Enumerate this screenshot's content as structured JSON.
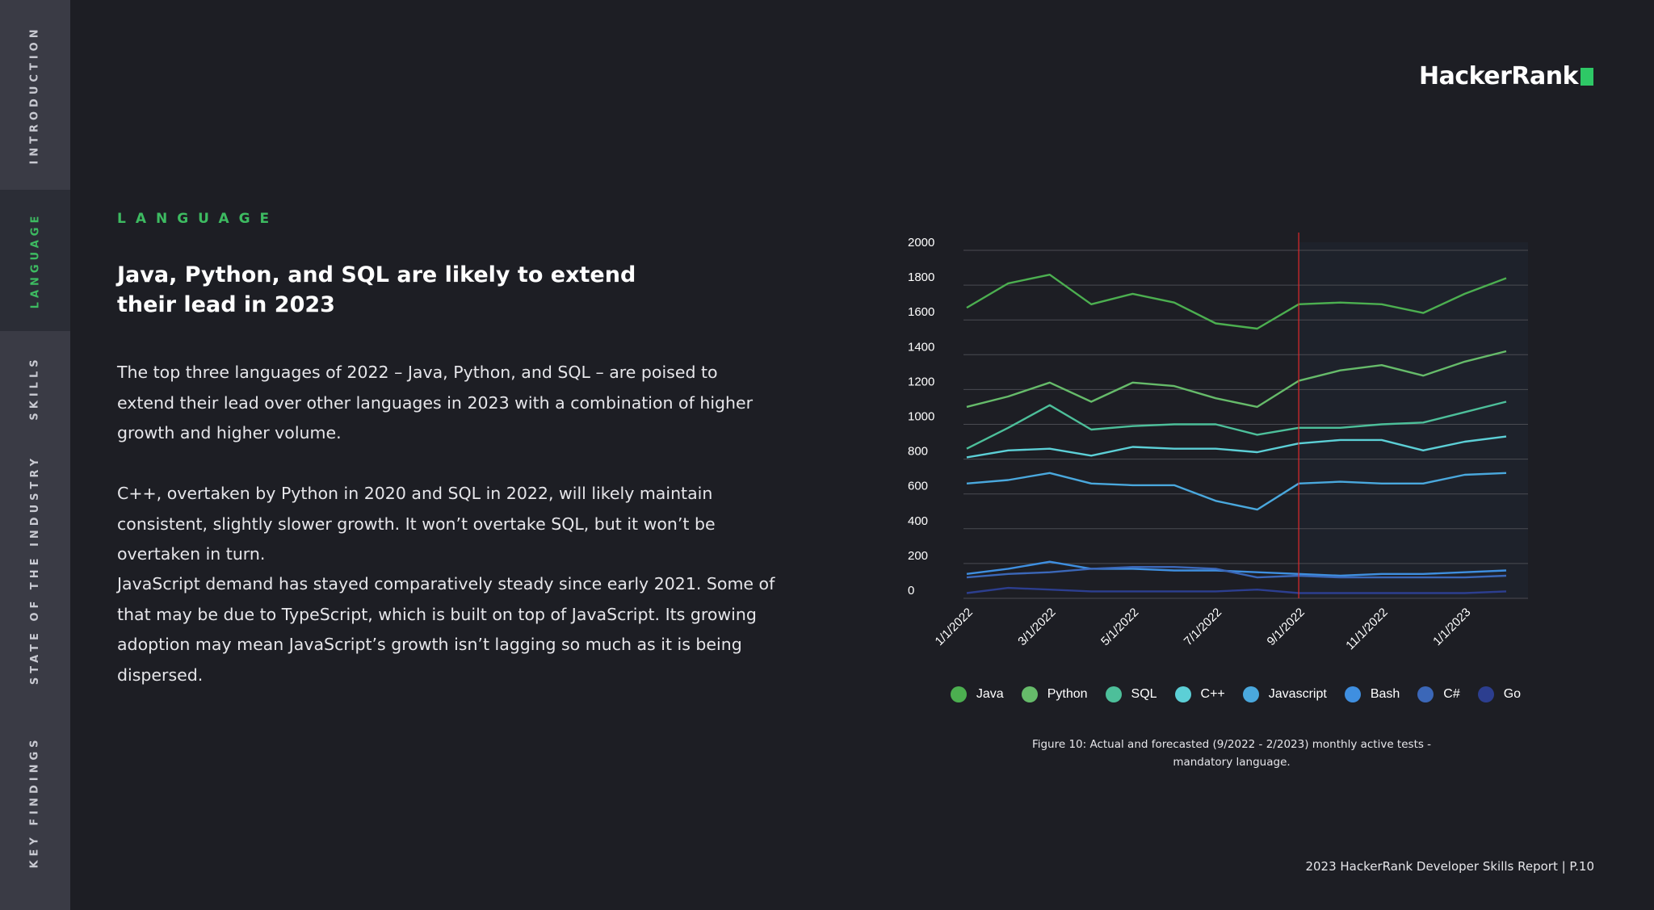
{
  "nav": {
    "items": [
      {
        "label": "INTRODUCTION"
      },
      {
        "label": "LANGUAGE"
      },
      {
        "label": "SKILLS"
      },
      {
        "label": "STATE OF THE INDUSTRY"
      },
      {
        "label": "KEY FINDINGS"
      }
    ],
    "active": "LANGUAGE"
  },
  "brand": {
    "name": "HackerRank"
  },
  "section_tag": "LANGUAGE",
  "headline": "Java, Python, and SQL are likely to extend their lead in 2023",
  "paragraphs": [
    "The top three languages of 2022 – Java, Python, and SQL – are poised to extend their lead over other languages in 2023 with a combination of higher growth and higher volume.",
    "C++, overtaken by Python in 2020 and SQL in 2022, will likely maintain consistent, slightly slower growth. It won’t overtake SQL, but it won’t be overtaken in turn.",
    "JavaScript demand has stayed comparatively steady since early 2021. Some of that may be due to TypeScript, which is built on top of JavaScript. Its growing adoption may mean JavaScript’s growth isn’t lagging so much as it is being dispersed."
  ],
  "caption": "Figure 10: Actual and forecasted (9/2022 - 2/2023) monthly active tests - mandatory language.",
  "footer": "2023 HackerRank Developer Skills Report | P.10",
  "colors": {
    "accent": "#3dbb61",
    "forecast_line": "#e0282a",
    "gridline": "#4a4b52",
    "background": "#1d1e24"
  },
  "chart_data": {
    "type": "line",
    "x": [
      "1/1/2022",
      "2/1/2022",
      "3/1/2022",
      "4/1/2022",
      "5/1/2022",
      "6/1/2022",
      "7/1/2022",
      "8/1/2022",
      "9/1/2022",
      "10/1/2022",
      "11/1/2022",
      "12/1/2022",
      "1/1/2023",
      "2/1/2023"
    ],
    "xtick_labels": [
      "1/1/2022",
      "3/1/2022",
      "5/1/2022",
      "7/1/2022",
      "9/1/2022",
      "11/1/2022",
      "1/1/2023"
    ],
    "ylim": [
      0,
      2000
    ],
    "yticks": [
      0,
      200,
      400,
      600,
      800,
      1000,
      1200,
      1400,
      1600,
      1800,
      2000
    ],
    "forecast_start": "9/1/2022",
    "legend_position": "bottom",
    "grid": true,
    "series": [
      {
        "name": "Java",
        "color": "#4caf50",
        "values": [
          1670,
          1810,
          1860,
          1690,
          1750,
          1700,
          1580,
          1550,
          1690,
          1700,
          1690,
          1640,
          1750,
          1840
        ]
      },
      {
        "name": "Python",
        "color": "#66bb6a",
        "values": [
          1100,
          1160,
          1240,
          1130,
          1240,
          1220,
          1150,
          1100,
          1250,
          1310,
          1340,
          1280,
          1360,
          1420
        ]
      },
      {
        "name": "SQL",
        "color": "#4dbf9a",
        "values": [
          860,
          980,
          1110,
          970,
          990,
          1000,
          1000,
          940,
          980,
          980,
          1000,
          1010,
          1070,
          1130
        ]
      },
      {
        "name": "C++",
        "color": "#5ccfd6",
        "values": [
          810,
          850,
          860,
          820,
          870,
          860,
          860,
          840,
          890,
          910,
          910,
          850,
          900,
          930
        ]
      },
      {
        "name": "Javascript",
        "color": "#4aa8dd",
        "values": [
          660,
          680,
          720,
          660,
          650,
          650,
          560,
          510,
          660,
          670,
          660,
          660,
          710,
          720
        ]
      },
      {
        "name": "Bash",
        "color": "#3f8fe0",
        "values": [
          140,
          170,
          210,
          170,
          170,
          160,
          160,
          150,
          140,
          130,
          140,
          140,
          150,
          160
        ]
      },
      {
        "name": "C#",
        "color": "#3b67b8",
        "values": [
          120,
          140,
          150,
          170,
          180,
          180,
          170,
          120,
          130,
          120,
          120,
          120,
          120,
          130
        ]
      },
      {
        "name": "Go",
        "color": "#2c3e8f",
        "values": [
          30,
          60,
          50,
          40,
          40,
          40,
          40,
          50,
          30,
          30,
          30,
          30,
          30,
          40
        ]
      }
    ]
  }
}
